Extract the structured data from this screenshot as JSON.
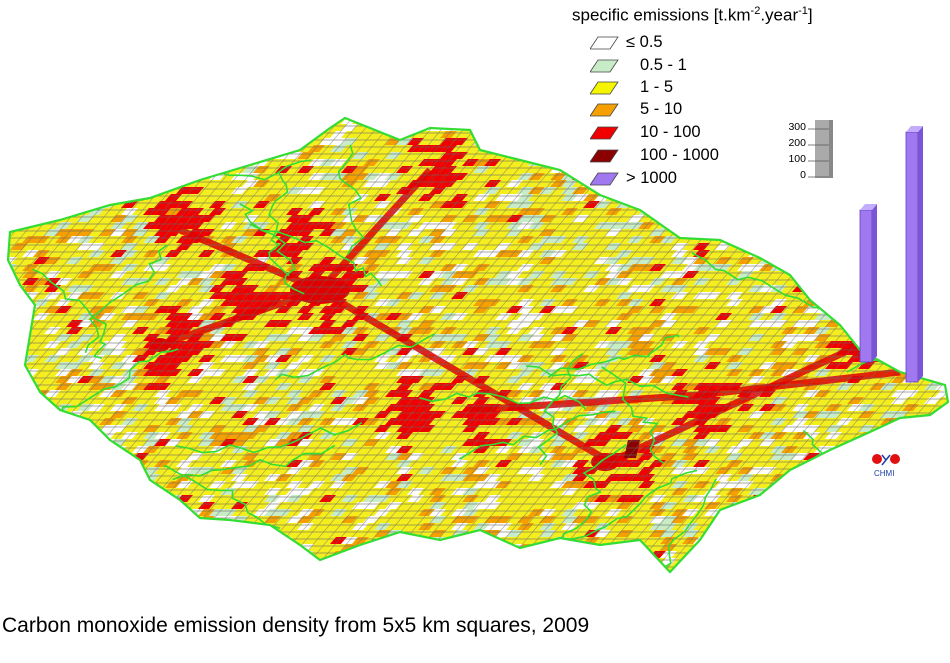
{
  "legend": {
    "title_prefix": "specific emissions [t.km",
    "title_exp1": "-2",
    "title_mid": ".year",
    "title_exp2": "-1",
    "title_suffix": "]",
    "items": [
      {
        "label": "≤ 0.5",
        "color": "#ffffff",
        "icon": "white-swatch"
      },
      {
        "label": "0.5 - 1",
        "color": "#c8ecc8",
        "icon": "light-green-swatch"
      },
      {
        "label": "1 - 5",
        "color": "#f5f500",
        "icon": "yellow-swatch"
      },
      {
        "label": "5 - 10",
        "color": "#f5a000",
        "icon": "orange-swatch"
      },
      {
        "label": "10 - 100",
        "color": "#f00000",
        "icon": "red-swatch"
      },
      {
        "label": "100 - 1000",
        "color": "#8b0000",
        "icon": "dark-red-swatch"
      },
      {
        "label": "> 1000",
        "color": "#a078f0",
        "icon": "violet-swatch"
      }
    ]
  },
  "scale_bar": {
    "ticks": [
      "300",
      "200",
      "100",
      "0"
    ],
    "color": "#aaaaaa"
  },
  "logo": {
    "text": "CHMI",
    "icon": "chmi-logo"
  },
  "caption": "Carbon monoxide emission density from 5x5 km squares, 2009",
  "colors": {
    "border": "#33dd33",
    "grid": "#555555"
  }
}
